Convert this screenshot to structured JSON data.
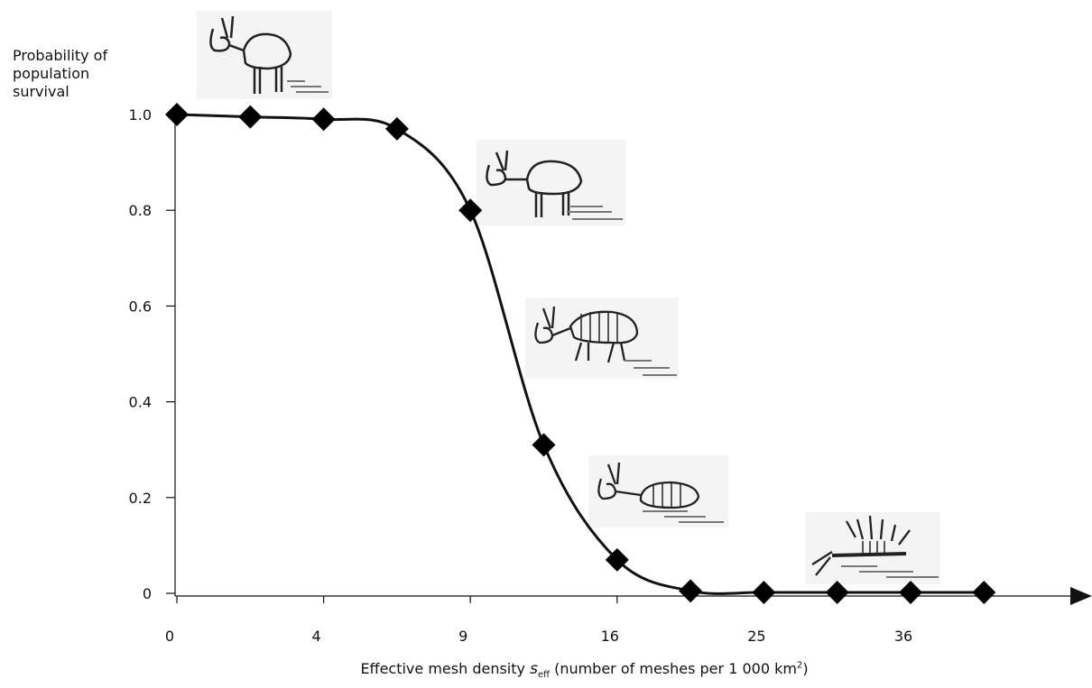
{
  "chart_data": {
    "type": "line",
    "title": "",
    "ylabel_lines": [
      "Probability of",
      "population",
      "survival"
    ],
    "xlabel": {
      "prefix": "Effective mesh density ",
      "symbol": "s",
      "subscript": "eff",
      "suffix_before_sup": " (number of meshes per 1 000 km",
      "superscript": "2",
      "suffix_after_sup": ")"
    },
    "x_ticks": [
      "0",
      "4",
      "9",
      "16",
      "25",
      "36"
    ],
    "y_ticks": [
      "0",
      "0.2",
      "0.4",
      "0.6",
      "0.8",
      "1.0"
    ],
    "ylim": [
      0,
      1.0
    ],
    "grid": false,
    "legend": "none",
    "marker": "diamond",
    "line_color": "#111111",
    "series": [
      {
        "x": [
          0,
          1,
          2,
          3,
          4,
          5,
          6,
          7,
          8,
          9,
          10,
          11
        ],
        "y": [
          1.0,
          0.995,
          0.99,
          0.97,
          0.8,
          0.31,
          0.07,
          0.005,
          0.002,
          0.002,
          0.002,
          0.002
        ]
      }
    ],
    "illustrations": [
      "healthy-animal-icon",
      "animal-icon",
      "thin-animal-icon",
      "lying-animal-icon",
      "dead-animal-icon"
    ]
  }
}
